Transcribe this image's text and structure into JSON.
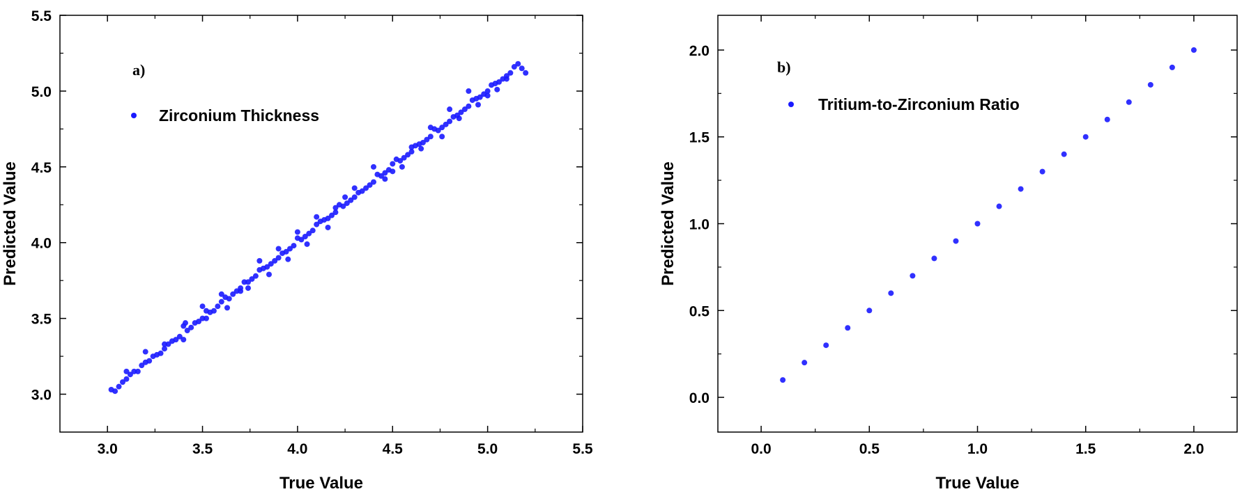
{
  "chart_data": [
    {
      "type": "scatter",
      "panel_label": "a)",
      "xlabel": "True Value",
      "ylabel": "Predicted Value",
      "xlim": [
        2.75,
        5.5
      ],
      "ylim": [
        2.75,
        5.5
      ],
      "xticks": [
        "3.0",
        "3.5",
        "4.0",
        "4.5",
        "5.0",
        "5.5"
      ],
      "yticks": [
        "3.0",
        "3.5",
        "4.0",
        "4.5",
        "5.0",
        "5.5"
      ],
      "grid": false,
      "legend": "top-left",
      "marker_color": "#1a1aff",
      "series": [
        {
          "name": "Zirconium Thickness",
          "x": [
            3.02,
            3.04,
            3.06,
            3.08,
            3.1,
            3.12,
            3.14,
            3.16,
            3.18,
            3.2,
            3.22,
            3.24,
            3.26,
            3.28,
            3.3,
            3.32,
            3.34,
            3.36,
            3.38,
            3.4,
            3.42,
            3.44,
            3.46,
            3.48,
            3.5,
            3.52,
            3.54,
            3.56,
            3.58,
            3.6,
            3.62,
            3.64,
            3.66,
            3.68,
            3.7,
            3.72,
            3.74,
            3.76,
            3.78,
            3.8,
            3.82,
            3.84,
            3.86,
            3.88,
            3.9,
            3.92,
            3.94,
            3.96,
            3.98,
            4.0,
            4.02,
            4.04,
            4.06,
            4.08,
            4.1,
            4.12,
            4.14,
            4.16,
            4.18,
            4.2,
            4.22,
            4.24,
            4.26,
            4.28,
            4.3,
            4.32,
            4.34,
            4.36,
            4.38,
            4.4,
            4.42,
            4.44,
            4.46,
            4.48,
            4.5,
            4.52,
            4.54,
            4.56,
            4.58,
            4.6,
            4.62,
            4.64,
            4.66,
            4.68,
            4.7,
            4.72,
            4.74,
            4.76,
            4.78,
            4.8,
            4.82,
            4.84,
            4.86,
            4.88,
            4.9,
            4.92,
            4.94,
            4.96,
            4.98,
            5.0,
            5.02,
            5.04,
            5.06,
            5.08,
            5.1,
            5.12,
            5.14,
            5.16,
            5.18,
            5.2,
            3.1,
            3.2,
            3.3,
            3.4,
            3.5,
            3.6,
            3.7,
            3.8,
            3.9,
            4.0,
            4.1,
            4.2,
            4.3,
            4.4,
            4.5,
            4.6,
            4.7,
            4.8,
            4.9,
            5.0,
            5.1,
            3.41,
            3.52,
            3.63,
            3.74,
            3.85,
            3.95,
            4.05,
            4.16,
            4.25,
            4.46,
            4.55,
            4.65,
            4.76,
            4.85,
            4.95,
            5.05
          ],
          "y": [
            3.03,
            3.02,
            3.05,
            3.08,
            3.1,
            3.13,
            3.15,
            3.15,
            3.19,
            3.21,
            3.22,
            3.25,
            3.26,
            3.27,
            3.3,
            3.33,
            3.35,
            3.36,
            3.38,
            3.45,
            3.42,
            3.44,
            3.47,
            3.48,
            3.5,
            3.55,
            3.54,
            3.55,
            3.58,
            3.61,
            3.64,
            3.63,
            3.66,
            3.68,
            3.7,
            3.74,
            3.74,
            3.76,
            3.78,
            3.82,
            3.83,
            3.84,
            3.86,
            3.88,
            3.9,
            3.93,
            3.94,
            3.96,
            3.98,
            4.03,
            4.02,
            4.04,
            4.06,
            4.08,
            4.12,
            4.14,
            4.15,
            4.16,
            4.18,
            4.2,
            4.25,
            4.24,
            4.26,
            4.28,
            4.3,
            4.33,
            4.34,
            4.36,
            4.38,
            4.4,
            4.45,
            4.44,
            4.46,
            4.48,
            4.52,
            4.55,
            4.54,
            4.56,
            4.58,
            4.6,
            4.64,
            4.65,
            4.66,
            4.68,
            4.7,
            4.75,
            4.74,
            4.76,
            4.78,
            4.8,
            4.83,
            4.84,
            4.86,
            4.88,
            4.9,
            4.94,
            4.95,
            4.96,
            4.98,
            5.0,
            5.04,
            5.05,
            5.06,
            5.08,
            5.1,
            5.12,
            5.16,
            5.18,
            5.15,
            5.12,
            3.15,
            3.28,
            3.33,
            3.36,
            3.58,
            3.66,
            3.68,
            3.88,
            3.96,
            4.07,
            4.17,
            4.23,
            4.36,
            4.5,
            4.47,
            4.63,
            4.76,
            4.88,
            5.0,
            4.97,
            5.08,
            3.47,
            3.5,
            3.57,
            3.7,
            3.79,
            3.89,
            3.99,
            4.1,
            4.3,
            4.42,
            4.5,
            4.62,
            4.7,
            4.82,
            4.91,
            5.01
          ]
        }
      ]
    },
    {
      "type": "scatter",
      "panel_label": "b)",
      "xlabel": "True Value",
      "ylabel": "Predicted Value",
      "xlim": [
        -0.2,
        2.2
      ],
      "ylim": [
        -0.2,
        2.2
      ],
      "xticks": [
        "0.0",
        "0.5",
        "1.0",
        "1.5",
        "2.0"
      ],
      "yticks": [
        "0.0",
        "0.5",
        "1.0",
        "1.5",
        "2.0"
      ],
      "grid": false,
      "legend": "top-left",
      "marker_color": "#1a1aff",
      "series": [
        {
          "name": "Tritium-to-Zirconium Ratio",
          "x": [
            0.1,
            0.2,
            0.3,
            0.4,
            0.5,
            0.6,
            0.7,
            0.8,
            0.9,
            1.0,
            1.1,
            1.2,
            1.3,
            1.4,
            1.5,
            1.6,
            1.7,
            1.8,
            1.9,
            2.0
          ],
          "y": [
            0.1,
            0.2,
            0.3,
            0.4,
            0.5,
            0.6,
            0.7,
            0.8,
            0.9,
            1.0,
            1.1,
            1.2,
            1.3,
            1.4,
            1.5,
            1.6,
            1.7,
            1.8,
            1.9,
            2.0
          ]
        }
      ]
    }
  ]
}
